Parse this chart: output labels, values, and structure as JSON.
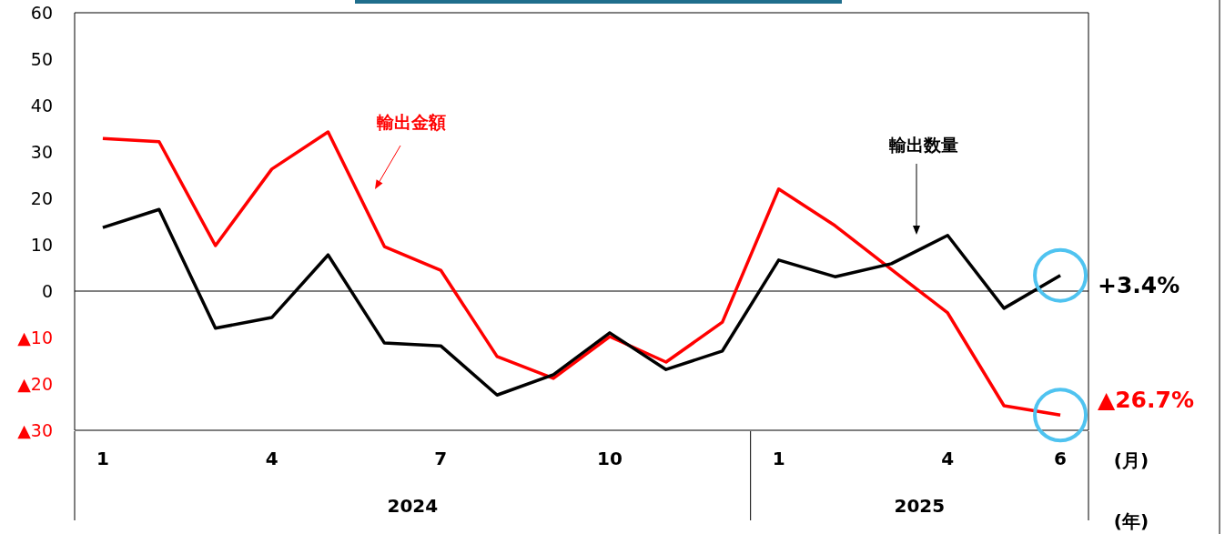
{
  "chart_data": {
    "type": "line",
    "categories": [
      "1",
      null,
      null,
      "4",
      null,
      null,
      "7",
      null,
      null,
      "10",
      null,
      null,
      "1",
      null,
      null,
      "4",
      null,
      "6"
    ],
    "series": [
      {
        "name": "輸出金額",
        "color": "#ff0000",
        "values": [
          32.9,
          32.2,
          9.8,
          26.3,
          34.3,
          9.6,
          4.5,
          -14.1,
          -18.8,
          -9.8,
          -15.3,
          -6.7,
          22.0,
          14.1,
          4.7,
          -4.7,
          -24.7,
          -26.7
        ]
      },
      {
        "name": "輸出数量",
        "color": "#000000",
        "values": [
          13.7,
          17.6,
          -8.0,
          -5.7,
          7.8,
          -11.2,
          -11.8,
          -22.4,
          -18.0,
          -9.0,
          -16.9,
          -12.9,
          6.7,
          3.1,
          5.9,
          12.0,
          -3.7,
          3.4
        ]
      }
    ],
    "ylim": [
      -30,
      60
    ],
    "yticks": [
      {
        "value": -30,
        "label": "▲30"
      },
      {
        "value": -20,
        "label": "▲20"
      },
      {
        "value": -10,
        "label": "▲10"
      },
      0,
      10,
      20,
      30,
      40,
      50,
      60
    ],
    "ref_lines": [
      {
        "axis": "y",
        "value": 0,
        "color": "#000000"
      }
    ],
    "annotations": [
      "+3.4%",
      "▲26.7%",
      "(月)",
      "(年)",
      "2024",
      "2025"
    ],
    "grid": false,
    "marker": "none",
    "line_style": "solid"
  }
}
